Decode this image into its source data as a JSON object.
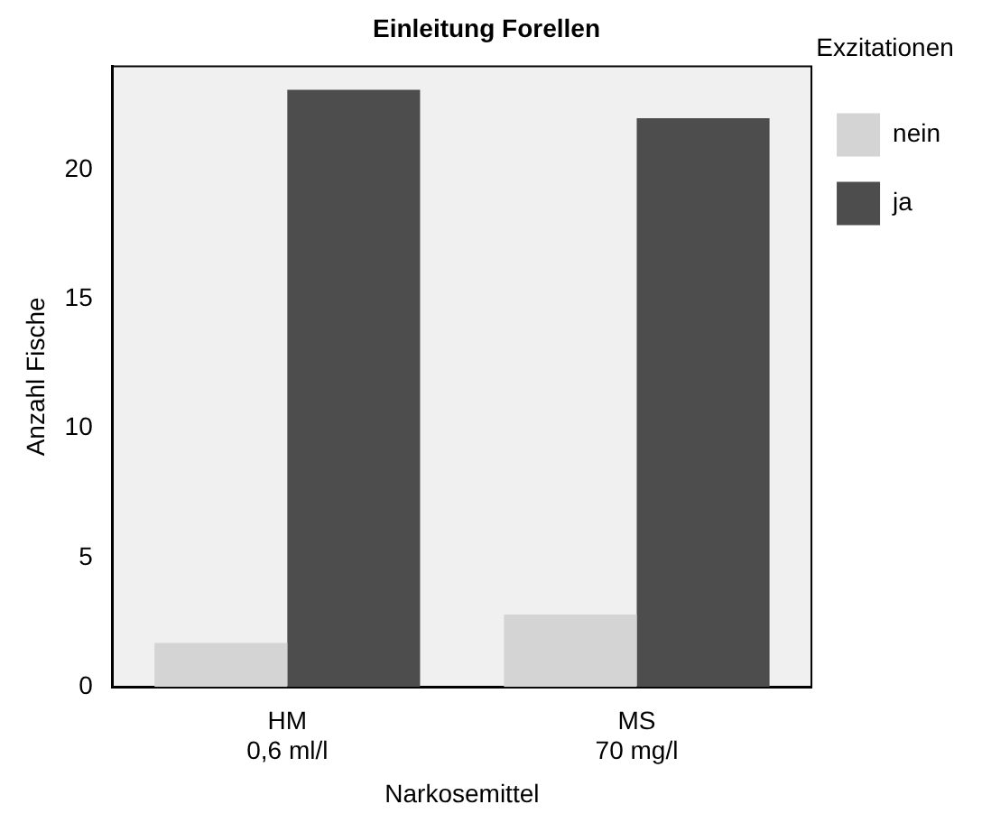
{
  "chart_data": {
    "type": "bar",
    "title": "Einleitung Forellen",
    "xlabel": "Narkosemittel",
    "ylabel": "Anzahl Fische",
    "legend_title": "Exzitationen",
    "categories": [
      "HM\n0,6 ml/l",
      "MS\n70 mg/l"
    ],
    "series": [
      {
        "name": "nein",
        "color": "#d4d4d4",
        "values": [
          1.7,
          2.8
        ]
      },
      {
        "name": "ja",
        "color": "#4d4d4d",
        "values": [
          23.1,
          22.0
        ]
      }
    ],
    "ylim": [
      0,
      24
    ],
    "yticks": [
      0,
      5,
      10,
      15,
      20
    ],
    "grid": false,
    "legend": "right"
  }
}
